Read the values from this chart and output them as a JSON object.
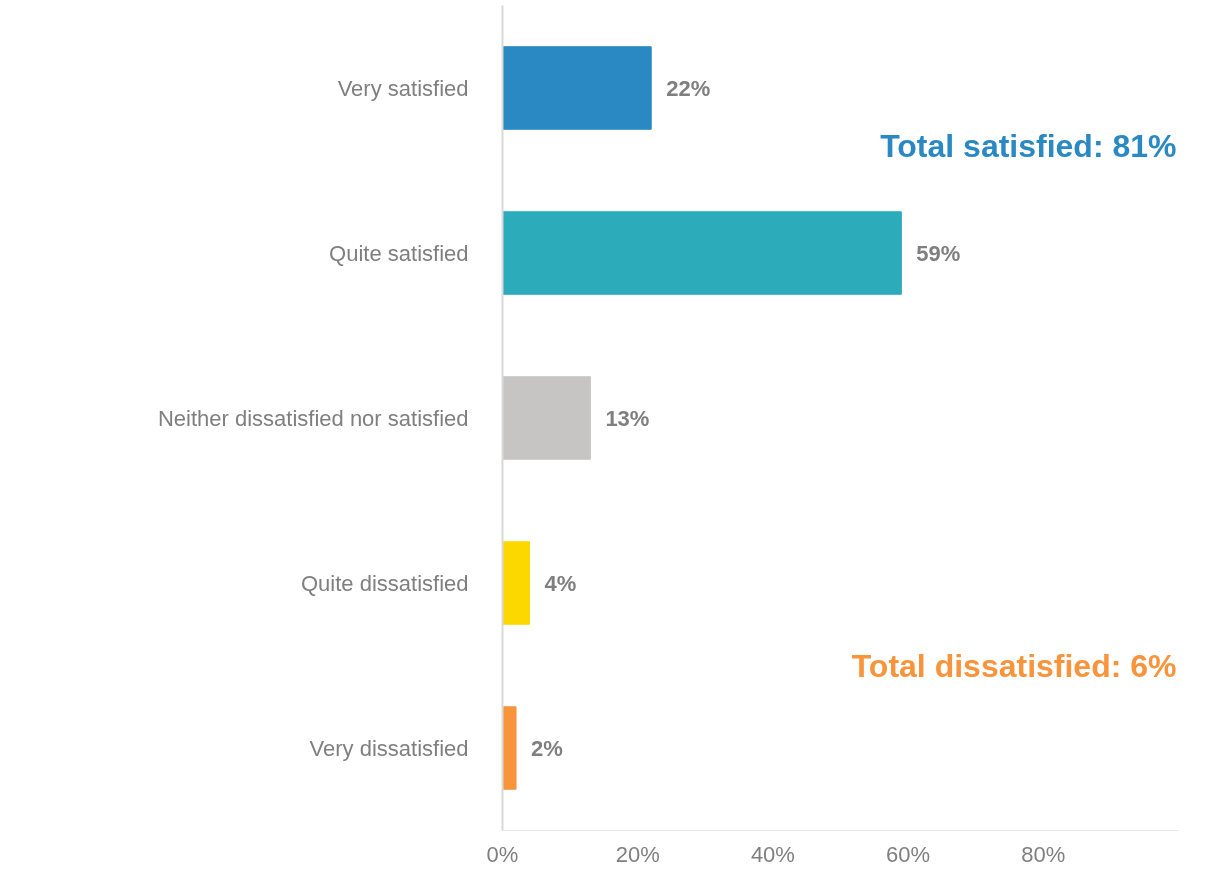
{
  "chart_data": {
    "type": "bar",
    "orientation": "horizontal",
    "categories": [
      "Very satisfied",
      "Quite satisfied",
      "Neither dissatisfied nor satisfied",
      "Quite dissatisfied",
      "Very dissatisfied"
    ],
    "values": [
      22,
      59,
      13,
      4,
      2
    ],
    "colors": [
      "#2a89c2",
      "#2cabbb",
      "#c6c5c3",
      "#fcd700",
      "#f7943c"
    ],
    "value_labels": [
      "22%",
      "59%",
      "13%",
      "4%",
      "2%"
    ],
    "xlim": [
      0,
      100
    ],
    "xticks": [
      {
        "value": 0,
        "label": "0%"
      },
      {
        "value": 20,
        "label": "20%"
      },
      {
        "value": 40,
        "label": "40%"
      },
      {
        "value": 60,
        "label": "60%"
      },
      {
        "value": 80,
        "label": "80%"
      }
    ],
    "grid": false,
    "annotations": [
      "Total satisfied: 81%",
      "Total dissatisfied: 6%"
    ]
  }
}
